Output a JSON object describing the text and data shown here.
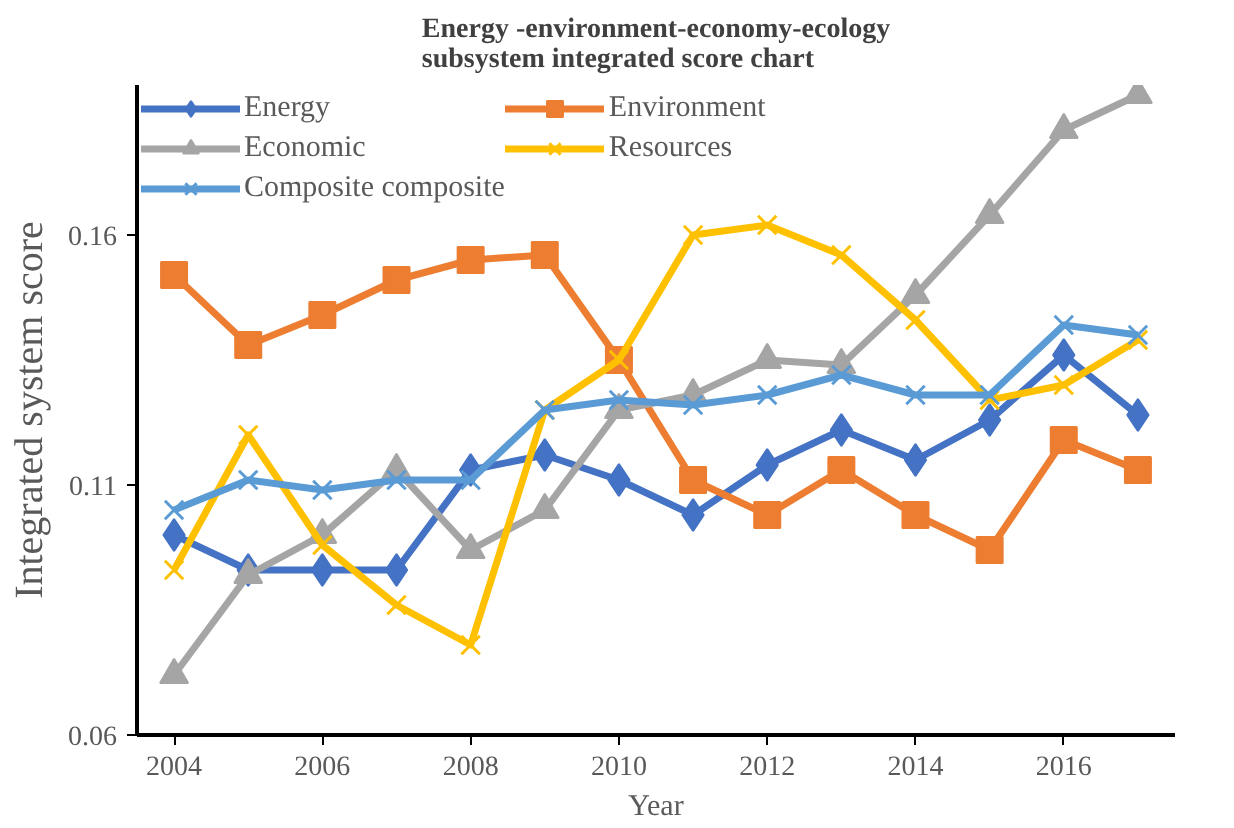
{
  "chart_data": {
    "type": "line",
    "title": "Energy -environment-economy-ecology subsystem integrated score chart",
    "xlabel": "Year",
    "ylabel": "Integrated system score",
    "x": [
      2004,
      2005,
      2006,
      2007,
      2008,
      2009,
      2010,
      2011,
      2012,
      2013,
      2014,
      2015,
      2016,
      2017
    ],
    "xlim": [
      2003.5,
      2017.5
    ],
    "xticks": [
      2004,
      2006,
      2008,
      2010,
      2012,
      2014,
      2016
    ],
    "ylim": [
      0.06,
      0.19
    ],
    "yticks": [
      0.06,
      0.11,
      0.16
    ],
    "grid": false,
    "legend": "top",
    "series": [
      {
        "name": "Energy",
        "color": "#4472c4",
        "marker": "diamond",
        "values": [
          0.1,
          0.093,
          0.093,
          0.093,
          0.113,
          0.116,
          0.111,
          0.104,
          0.114,
          0.121,
          0.115,
          0.123,
          0.136,
          0.124
        ]
      },
      {
        "name": "Environment",
        "color": "#ed7d31",
        "marker": "square",
        "values": [
          0.152,
          0.138,
          0.144,
          0.151,
          0.155,
          0.156,
          0.135,
          0.111,
          0.104,
          0.113,
          0.104,
          0.097,
          0.119,
          0.113
        ]
      },
      {
        "name": "Economic",
        "color": "#a5a5a5",
        "marker": "triangle",
        "values": [
          0.072,
          0.092,
          0.1,
          0.113,
          0.097,
          0.105,
          0.125,
          0.128,
          0.135,
          0.134,
          0.148,
          0.164,
          0.181,
          0.188
        ]
      },
      {
        "name": "Resources",
        "color": "#ffc000",
        "marker": "cross",
        "values": [
          0.093,
          0.12,
          0.098,
          0.086,
          0.078,
          0.125,
          0.135,
          0.16,
          0.162,
          0.156,
          0.143,
          0.127,
          0.13,
          0.139
        ]
      },
      {
        "name": "Composite composite",
        "color": "#5b9bd5",
        "marker": "cross",
        "values": [
          0.105,
          0.111,
          0.109,
          0.111,
          0.111,
          0.125,
          0.127,
          0.126,
          0.128,
          0.132,
          0.128,
          0.128,
          0.142,
          0.14
        ]
      }
    ]
  }
}
